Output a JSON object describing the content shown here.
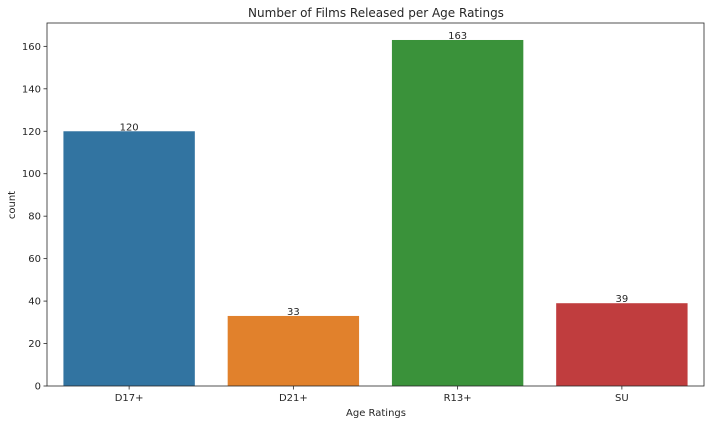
{
  "chart_data": {
    "type": "bar",
    "title": "Number of Films Released per Age Ratings",
    "xlabel": "Age Ratings",
    "ylabel": "count",
    "categories": [
      "D17+",
      "D21+",
      "R13+",
      "SU"
    ],
    "values": [
      120,
      33,
      163,
      39
    ],
    "colors": [
      "#3274a1",
      "#e1812c",
      "#3a923a",
      "#c03d3e"
    ],
    "ylim": [
      0,
      171
    ],
    "yticks": [
      0,
      20,
      40,
      60,
      80,
      100,
      120,
      140,
      160
    ],
    "grid": false,
    "legend": "none"
  }
}
